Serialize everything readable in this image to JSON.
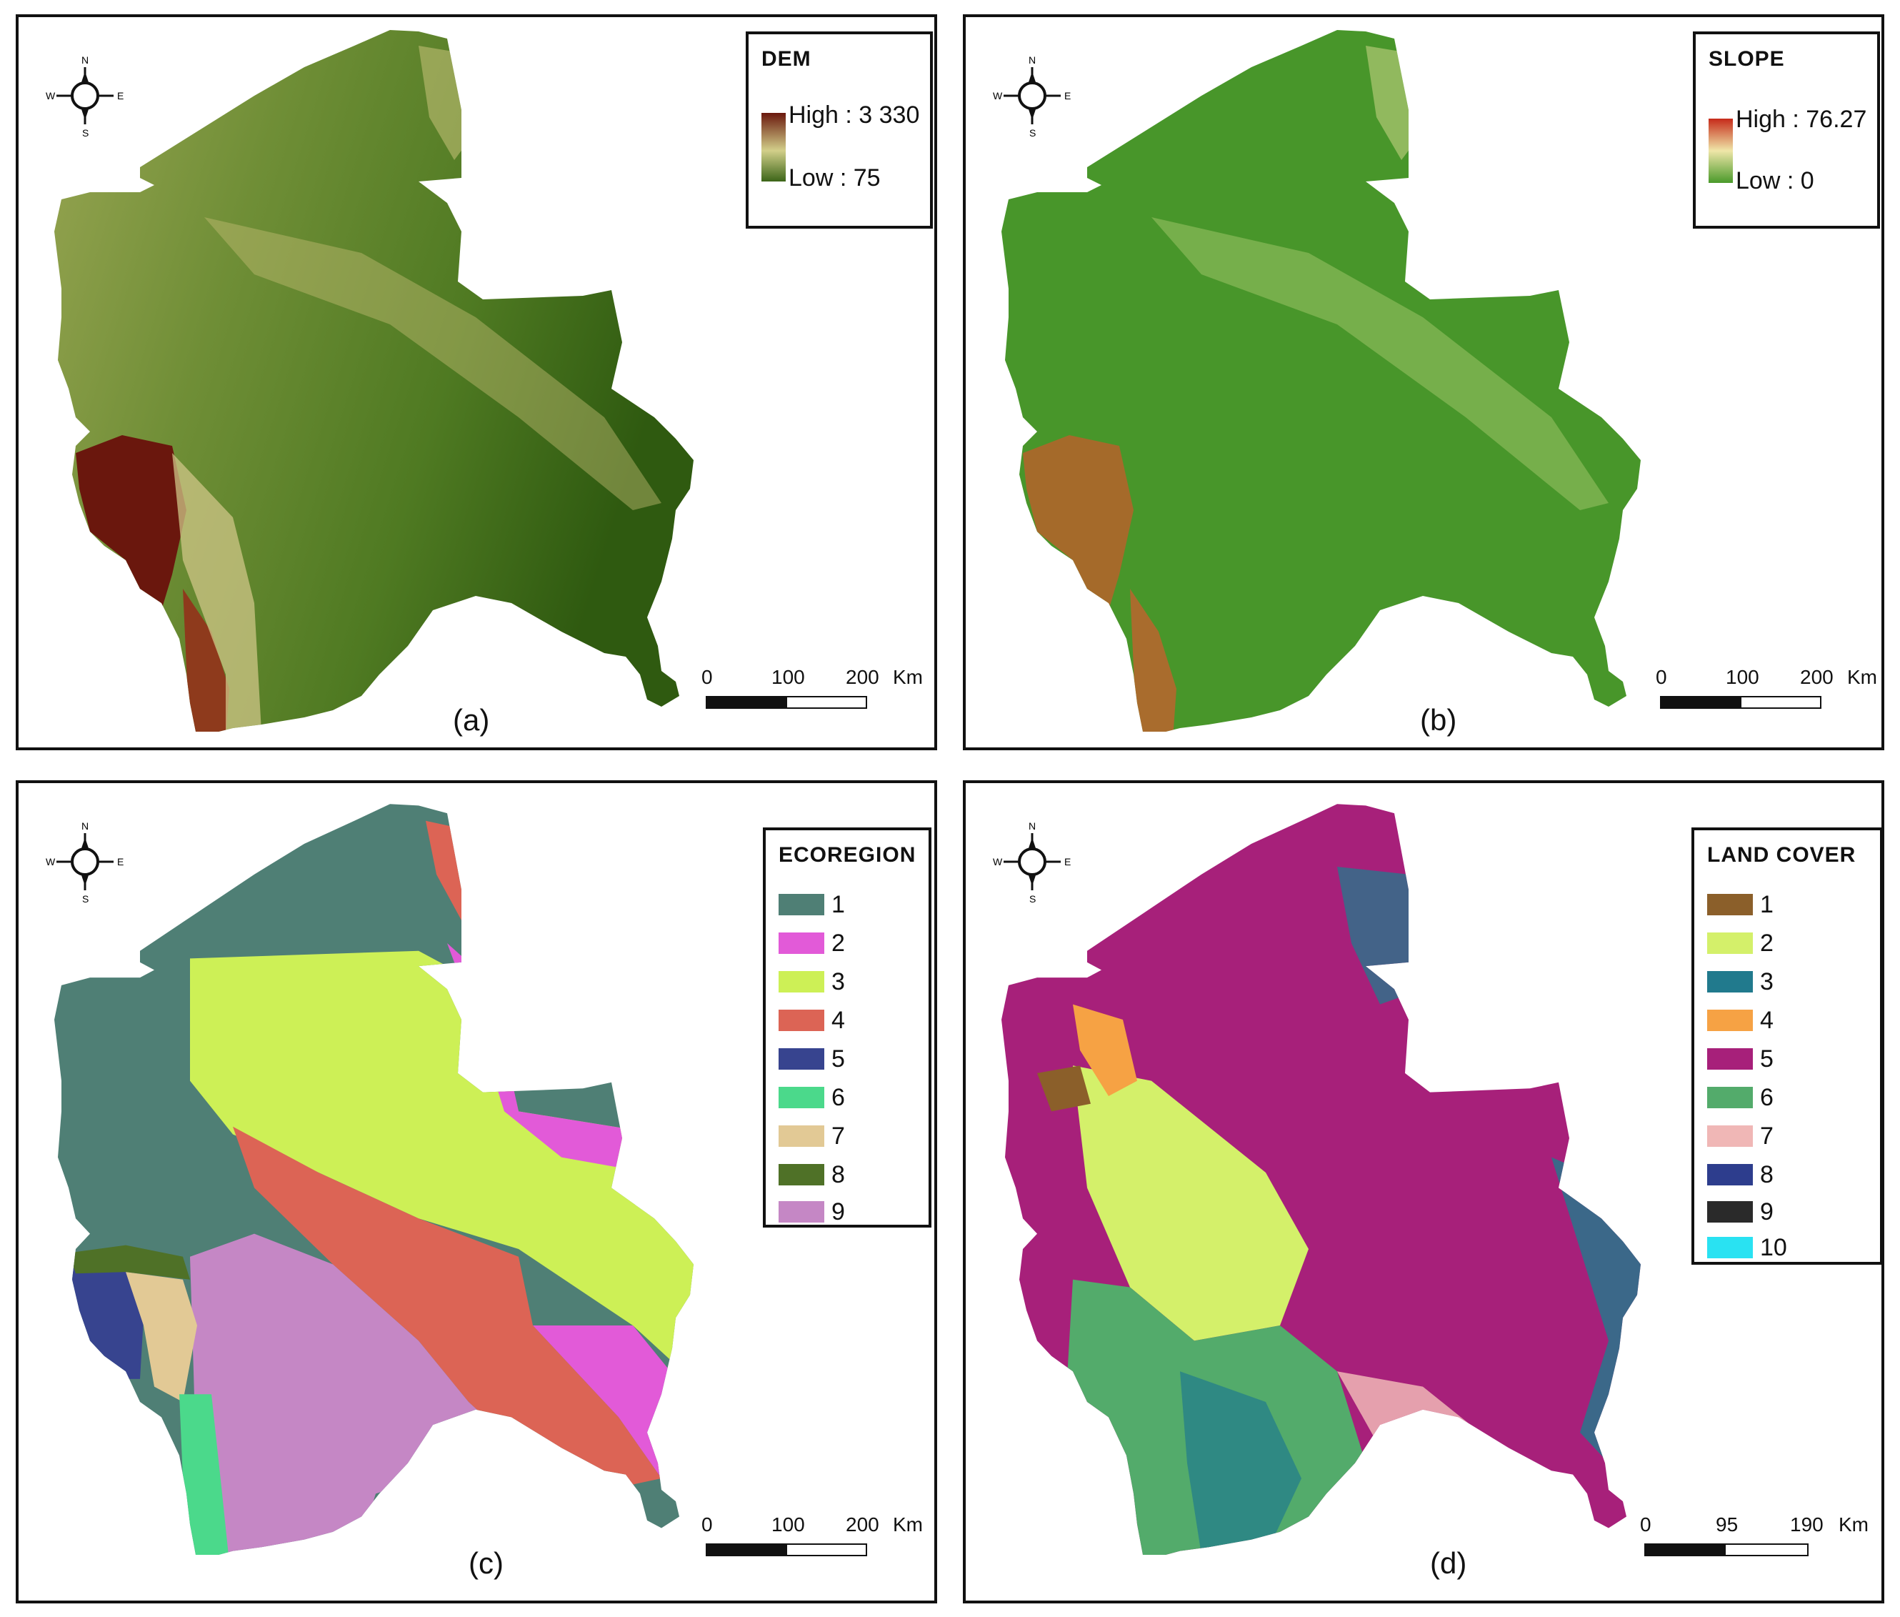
{
  "compass": {
    "n": "N",
    "s": "S",
    "e": "E",
    "w": "W"
  },
  "colors": {
    "dem_low": "#3c6518",
    "dem_mid": "#d2cf8a",
    "dem_high": "#6a170d",
    "slope_low": "#4a9a2a",
    "slope_mid": "#efe6a8",
    "slope_high": "#c62a1a"
  },
  "panels": [
    {
      "id": "a",
      "caption": "(a)",
      "legend": {
        "title": "DEM",
        "high": "High : 3 330",
        "low": "Low : 75"
      },
      "scale": {
        "zero": "0",
        "mid": "100",
        "max": "200",
        "unit": "Km"
      }
    },
    {
      "id": "b",
      "caption": "(b)",
      "legend": {
        "title": "SLOPE",
        "high": "High : 76.27",
        "low": "Low : 0"
      },
      "scale": {
        "zero": "0",
        "mid": "100",
        "max": "200",
        "unit": "Km"
      }
    },
    {
      "id": "c",
      "caption": "(c)",
      "legend": {
        "title": "ECOREGION",
        "items": [
          {
            "label": "1",
            "color": "#4f7f75"
          },
          {
            "label": "2",
            "color": "#e25ad8"
          },
          {
            "label": "3",
            "color": "#cdf056"
          },
          {
            "label": "4",
            "color": "#dc6455"
          },
          {
            "label": "5",
            "color": "#37448f"
          },
          {
            "label": "6",
            "color": "#4bd98b"
          },
          {
            "label": "7",
            "color": "#e2c995"
          },
          {
            "label": "8",
            "color": "#4f7127"
          },
          {
            "label": "9",
            "color": "#c587c5"
          }
        ]
      },
      "scale": {
        "zero": "0",
        "mid": "100",
        "max": "200",
        "unit": "Km"
      }
    },
    {
      "id": "d",
      "caption": "(d)",
      "legend": {
        "title": "LAND COVER",
        "items": [
          {
            "label": "1",
            "color": "#8b5f2a"
          },
          {
            "label": "2",
            "color": "#d4f06a"
          },
          {
            "label": "3",
            "color": "#217a8d"
          },
          {
            "label": "4",
            "color": "#f6a244"
          },
          {
            "label": "5",
            "color": "#a7207a"
          },
          {
            "label": "6",
            "color": "#53ab6b"
          },
          {
            "label": "7",
            "color": "#f0b7b6"
          },
          {
            "label": "8",
            "color": "#2d3d8d"
          },
          {
            "label": "9",
            "color": "#2a2a2a"
          },
          {
            "label": "10",
            "color": "#29e2f2"
          }
        ]
      },
      "scale": {
        "zero": "0",
        "mid": "95",
        "max": "190",
        "unit": "Km"
      }
    }
  ]
}
